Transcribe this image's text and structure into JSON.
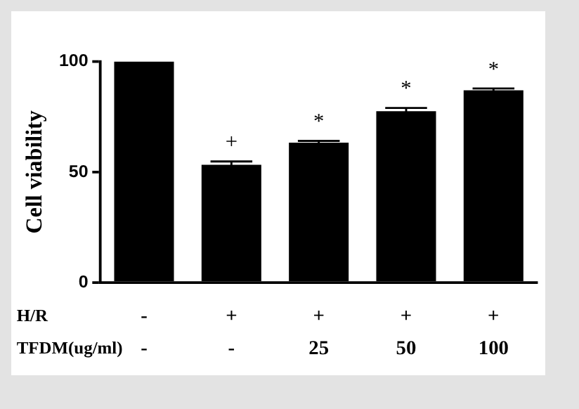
{
  "chart_data": {
    "type": "bar",
    "ylabel": "Cell viability",
    "categories": [
      "-\n-",
      "+\n-",
      "+\n25",
      "+\n50",
      "+\n100"
    ],
    "values": [
      100,
      53.3,
      63.3,
      77.5,
      87
    ],
    "errors": [
      null,
      1.5,
      0.8,
      1.5,
      0.8
    ],
    "color": "#000000",
    "ylim": [
      0,
      100
    ],
    "yticks": [
      0,
      50,
      100
    ],
    "grid": false,
    "legend": false,
    "annotations": [
      "H/R",
      "TFDM(ug/ml)",
      "+",
      "*",
      "*",
      "*"
    ]
  }
}
